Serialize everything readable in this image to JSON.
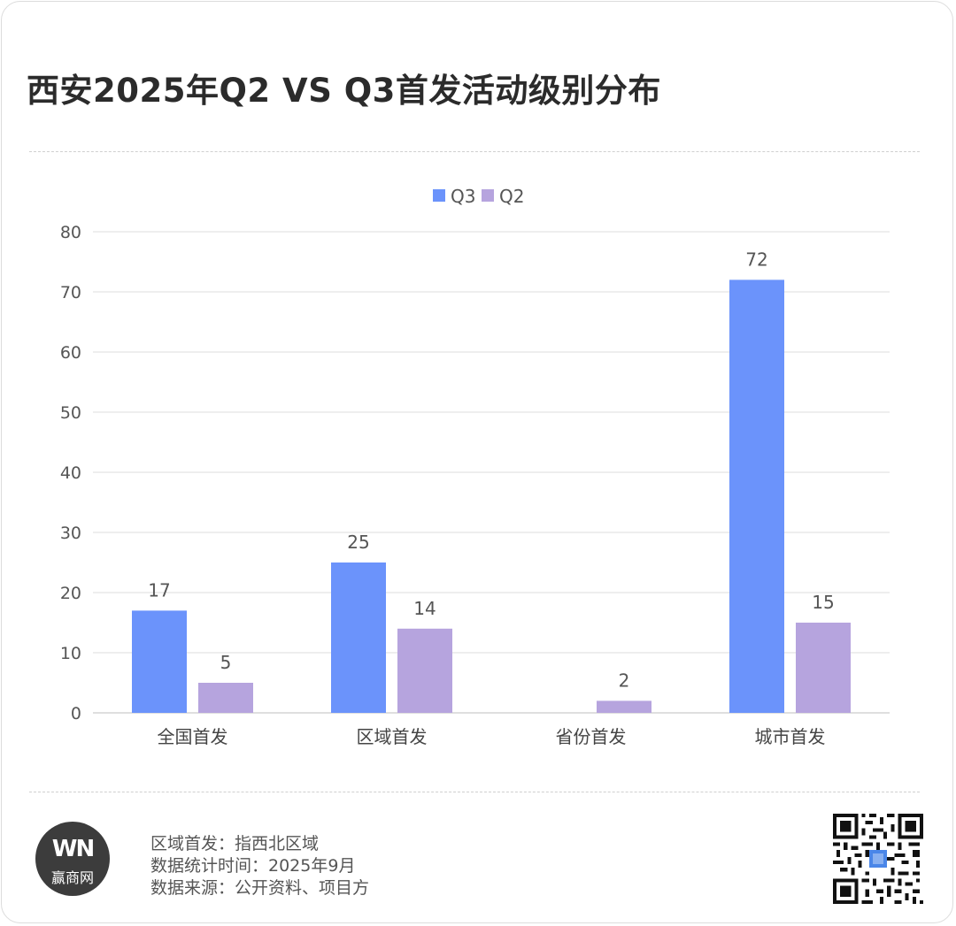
{
  "header": {
    "title": "西安2025年Q2 VS Q3首发活动级别分布"
  },
  "chart_data": {
    "type": "bar",
    "categories": [
      "全国首发",
      "区域首发",
      "省份首发",
      "城市首发"
    ],
    "series": [
      {
        "name": "Q3",
        "color": "#6b93fb",
        "values": [
          17,
          25,
          null,
          72
        ],
        "labels": [
          "17",
          "25",
          "",
          "72"
        ]
      },
      {
        "name": "Q2",
        "color": "#b6a4de",
        "values": [
          5,
          14,
          2,
          15
        ],
        "labels": [
          "5",
          "14",
          "2",
          "15"
        ]
      }
    ],
    "yticks": [
      0,
      10,
      20,
      30,
      40,
      50,
      60,
      70,
      80
    ],
    "ylim": [
      0,
      80
    ],
    "grid": true,
    "legend_position": "top-center"
  },
  "footer": {
    "logo_mark": "WN",
    "logo_text": "赢商网",
    "notes": [
      "区域首发：指西北区域",
      "数据统计时间：2025年9月",
      "数据来源：公开资料、项目方"
    ]
  }
}
